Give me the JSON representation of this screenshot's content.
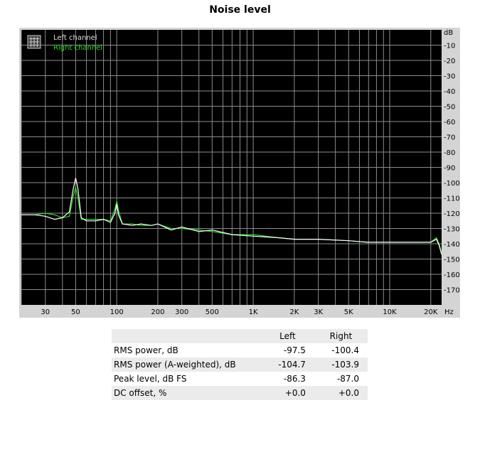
{
  "page": {
    "title": "Noise level"
  },
  "chart_data": {
    "type": "line",
    "title": "Noise level",
    "x_scale": "log",
    "xlim": [
      20,
      24000
    ],
    "ylim": [
      -180,
      0
    ],
    "y_unit": "dB",
    "x_unit": "Hz",
    "grid": true,
    "legend_position": "top-left",
    "y_ticks": [
      "dB",
      "-10",
      "-20",
      "-30",
      "-40",
      "-50",
      "-60",
      "-70",
      "-80",
      "-90",
      "-100",
      "-110",
      "-120",
      "-130",
      "-140",
      "-150",
      "-160",
      "-170"
    ],
    "x_ticks": [
      {
        "value": 30,
        "label": "30"
      },
      {
        "value": 50,
        "label": "50"
      },
      {
        "value": 100,
        "label": "100"
      },
      {
        "value": 200,
        "label": "200"
      },
      {
        "value": 300,
        "label": "300"
      },
      {
        "value": 500,
        "label": "500"
      },
      {
        "value": 1000,
        "label": "1K"
      },
      {
        "value": 2000,
        "label": "2K"
      },
      {
        "value": 3000,
        "label": "3K"
      },
      {
        "value": 5000,
        "label": "5K"
      },
      {
        "value": 10000,
        "label": "10K"
      },
      {
        "value": 20000,
        "label": "20K"
      }
    ],
    "series": [
      {
        "name": "Left channel",
        "color": "#ffffff",
        "x": [
          20,
          25,
          30,
          35,
          40,
          45,
          48,
          50,
          52,
          55,
          60,
          70,
          80,
          90,
          97,
          100,
          103,
          110,
          130,
          150,
          180,
          200,
          250,
          300,
          400,
          500,
          700,
          1000,
          1500,
          2000,
          3000,
          5000,
          7000,
          10000,
          15000,
          20000,
          22000,
          23000,
          24000
        ],
        "y": [
          -121,
          -121,
          -122,
          -124,
          -123,
          -119,
          -104,
          -97,
          -104,
          -123,
          -125,
          -125,
          -124,
          -126,
          -120,
          -114,
          -121,
          -127,
          -128,
          -127,
          -128,
          -127,
          -131,
          -129,
          -132,
          -131,
          -134,
          -135,
          -136,
          -137,
          -137,
          -138,
          -139,
          -139,
          -139,
          -139,
          -137,
          -141,
          -147
        ]
      },
      {
        "name": "Right channel",
        "color": "#22dd22",
        "x": [
          20,
          25,
          30,
          35,
          40,
          45,
          48,
          50,
          52,
          55,
          60,
          70,
          80,
          90,
          97,
          100,
          103,
          110,
          130,
          150,
          180,
          200,
          250,
          300,
          400,
          500,
          700,
          1000,
          1500,
          2000,
          3000,
          5000,
          7000,
          10000,
          15000,
          20000,
          22000,
          23000,
          24000
        ],
        "y": [
          -121,
          -121,
          -120,
          -121,
          -123,
          -122,
          -109,
          -103,
          -110,
          -124,
          -124,
          -124,
          -124,
          -125,
          -117,
          -112,
          -118,
          -127,
          -127,
          -128,
          -128,
          -127,
          -130,
          -130,
          -131,
          -132,
          -134,
          -134,
          -136,
          -137,
          -137,
          -138,
          -139,
          -139,
          -139,
          -139,
          -136,
          -140,
          -146
        ]
      }
    ]
  },
  "table": {
    "headers": [
      "",
      "Left",
      "Right"
    ],
    "rows": [
      {
        "label": "RMS power, dB",
        "left": "-97.5",
        "right": "-100.4"
      },
      {
        "label": "RMS power (A-weighted), dB",
        "left": "-104.7",
        "right": "-103.9"
      },
      {
        "label": "Peak level, dB FS",
        "left": "-86.3",
        "right": "-87.0"
      },
      {
        "label": "DC offset, %",
        "left": "+0.0",
        "right": "+0.0"
      }
    ]
  }
}
